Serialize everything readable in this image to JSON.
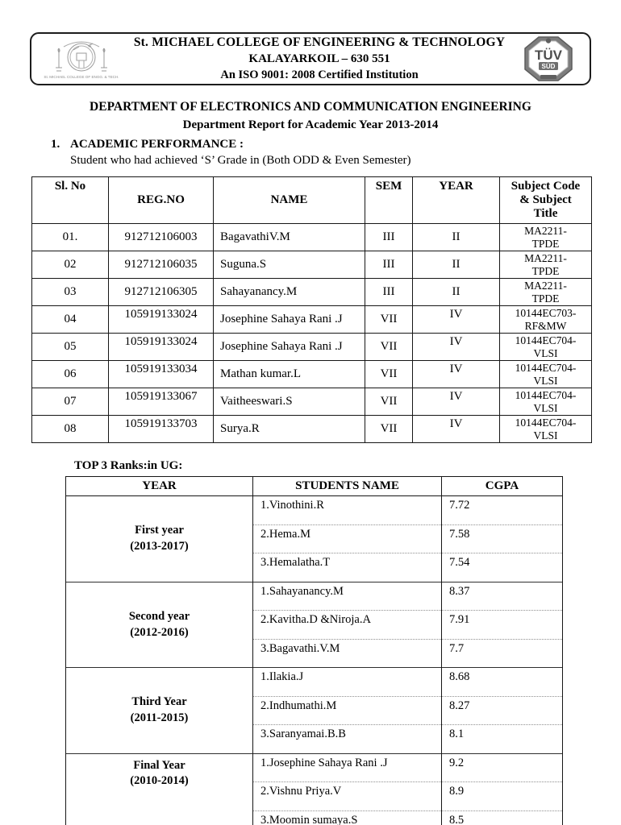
{
  "header": {
    "college_name": "St. MICHAEL COLLEGE OF ENGINEERING & TECHNOLOGY",
    "location": "KALAYARKOIL – 630 551",
    "certification": "An ISO 9001: 2008 Certified Institution",
    "emblem_caption": "St. MICHAEL COLLEGE OF ENGG. & TECH.",
    "tuv_logo": {
      "line1": "TÜV",
      "line2": "SÜD"
    }
  },
  "title": "DEPARTMENT OF ELECTRONICS AND COMMUNICATION ENGINEERING",
  "subtitle": "Department Report for Academic Year 2013-2014",
  "section1": {
    "number": "1.",
    "heading": "ACADEMIC PERFORMANCE :",
    "description": "Student who had achieved ‘S’ Grade in (Both ODD & Even Semester)"
  },
  "grades_table": {
    "columns": [
      "Sl. No",
      "REG.NO",
      "NAME",
      "SEM",
      "YEAR",
      "Subject Code & Subject Title"
    ],
    "rows": [
      {
        "sl": "01.",
        "reg": "912712106003",
        "name": "BagavathiV.M",
        "sem": "III",
        "year": "II",
        "subject": [
          "MA2211-",
          "TPDE"
        ]
      },
      {
        "sl": "02",
        "reg": "912712106035",
        "name": "Suguna.S",
        "sem": "III",
        "year": "II",
        "subject": [
          "MA2211-",
          "TPDE"
        ]
      },
      {
        "sl": "03",
        "reg": "912712106305",
        "name": "Sahayanancy.M",
        "sem": "III",
        "year": "II",
        "subject": [
          "MA2211-",
          "TPDE"
        ]
      },
      {
        "sl": "04",
        "reg": "105919133024",
        "name": "Josephine Sahaya Rani .J",
        "sem": "VII",
        "year": "IV",
        "subject": [
          "10144EC703-",
          "RF&MW"
        ]
      },
      {
        "sl": "05",
        "reg": "105919133024",
        "name": "Josephine Sahaya Rani .J",
        "sem": "VII",
        "year": "IV",
        "subject": [
          "10144EC704-",
          "VLSI"
        ]
      },
      {
        "sl": "06",
        "reg": "105919133034",
        "name": "Mathan kumar.L",
        "sem": "VII",
        "year": "IV",
        "subject": [
          "10144EC704-",
          "VLSI"
        ]
      },
      {
        "sl": "07",
        "reg": "105919133067",
        "name": "Vaitheeswari.S",
        "sem": "VII",
        "year": "IV",
        "subject": [
          "10144EC704-",
          "VLSI"
        ]
      },
      {
        "sl": "08",
        "reg": "105919133703",
        "name": "Surya.R",
        "sem": "VII",
        "year": "IV",
        "subject": [
          "10144EC704-",
          "VLSI"
        ]
      }
    ]
  },
  "ranks": {
    "heading": "TOP 3 Ranks:in UG:",
    "columns": [
      "YEAR",
      "STUDENTS NAME",
      "CGPA"
    ],
    "groups": [
      {
        "year_label": "First year",
        "year_range": "(2013-2017)",
        "students": [
          {
            "name": "1.Vinothini.R",
            "cgpa": "7.72"
          },
          {
            "name": "2.Hema.M",
            "cgpa": "7.58"
          },
          {
            "name": "3.Hemalatha.T",
            "cgpa": "7.54"
          }
        ]
      },
      {
        "year_label": "Second year",
        "year_range": "(2012-2016)",
        "students": [
          {
            "name": "1.Sahayanancy.M",
            "cgpa": "8.37"
          },
          {
            "name": "2.Kavitha.D &Niroja.A",
            "cgpa": "7.91"
          },
          {
            "name": "3.Bagavathi.V.M",
            "cgpa": "7.7"
          }
        ]
      },
      {
        "year_label": "Third Year",
        "year_range": "(2011-2015)",
        "students": [
          {
            "name": "1.Ilakia.J",
            "cgpa": "8.68"
          },
          {
            "name": "2.Indhumathi.M",
            "cgpa": "8.27"
          },
          {
            "name": "3.Saranyamai.B.B",
            "cgpa": "8.1"
          }
        ]
      },
      {
        "year_label": "Final Year",
        "year_range": "(2010-2014)",
        "students": [
          {
            "name": "1.Josephine Sahaya Rani .J",
            "cgpa": "9.2"
          },
          {
            "name": "2.Vishnu Priya.V",
            "cgpa": "8.9"
          },
          {
            "name": "3.Moomin sumaya.S",
            "cgpa": "8.5"
          }
        ]
      }
    ]
  }
}
